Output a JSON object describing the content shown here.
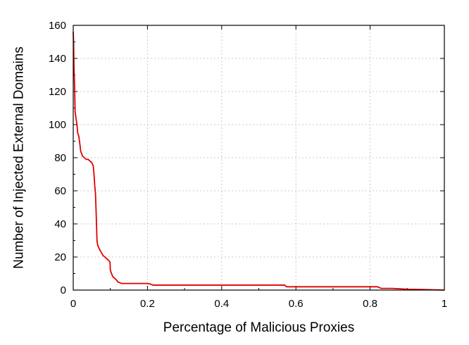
{
  "chart_data": {
    "type": "line",
    "xlabel": "Percentage of Malicious Proxies",
    "ylabel": "Number of Injected External Domains",
    "xlim": [
      0,
      1
    ],
    "ylim": [
      0,
      160
    ],
    "x_ticks": [
      0,
      0.2,
      0.4,
      0.6,
      0.8,
      1
    ],
    "x_tick_labels": [
      "0",
      "0.2",
      "0.4",
      "0.6",
      "0.8",
      "1"
    ],
    "y_ticks": [
      0,
      20,
      40,
      60,
      80,
      100,
      120,
      140,
      160
    ],
    "y_tick_labels": [
      "0",
      "20",
      "40",
      "60",
      "80",
      "100",
      "120",
      "140",
      "160"
    ],
    "grid": true,
    "line_color": "#e00000",
    "series": [
      {
        "points": [
          [
            0,
            156
          ],
          [
            0.001,
            150
          ],
          [
            0.002,
            135
          ],
          [
            0.003,
            128
          ],
          [
            0.004,
            120
          ],
          [
            0.005,
            108
          ],
          [
            0.008,
            103
          ],
          [
            0.01,
            100
          ],
          [
            0.012,
            95
          ],
          [
            0.015,
            93
          ],
          [
            0.018,
            88
          ],
          [
            0.02,
            84
          ],
          [
            0.025,
            81
          ],
          [
            0.03,
            80
          ],
          [
            0.035,
            79
          ],
          [
            0.04,
            79
          ],
          [
            0.045,
            78
          ],
          [
            0.05,
            77
          ],
          [
            0.054,
            75
          ],
          [
            0.056,
            70
          ],
          [
            0.058,
            63
          ],
          [
            0.06,
            58
          ],
          [
            0.062,
            45
          ],
          [
            0.064,
            30
          ],
          [
            0.066,
            27
          ],
          [
            0.07,
            25
          ],
          [
            0.075,
            23
          ],
          [
            0.08,
            21
          ],
          [
            0.085,
            20
          ],
          [
            0.09,
            19
          ],
          [
            0.095,
            18
          ],
          [
            0.099,
            17
          ],
          [
            0.1,
            12
          ],
          [
            0.103,
            10
          ],
          [
            0.107,
            8
          ],
          [
            0.112,
            7
          ],
          [
            0.117,
            6
          ],
          [
            0.12,
            5
          ],
          [
            0.125,
            4.5
          ],
          [
            0.13,
            4
          ],
          [
            0.2,
            4
          ],
          [
            0.21,
            3.5
          ],
          [
            0.215,
            3
          ],
          [
            0.57,
            3
          ],
          [
            0.572,
            2.5
          ],
          [
            0.575,
            2
          ],
          [
            0.82,
            2
          ],
          [
            0.825,
            1.5
          ],
          [
            0.83,
            1
          ],
          [
            0.86,
            1
          ],
          [
            0.9,
            0.5
          ],
          [
            0.95,
            0.3
          ],
          [
            1,
            0
          ]
        ]
      }
    ]
  }
}
